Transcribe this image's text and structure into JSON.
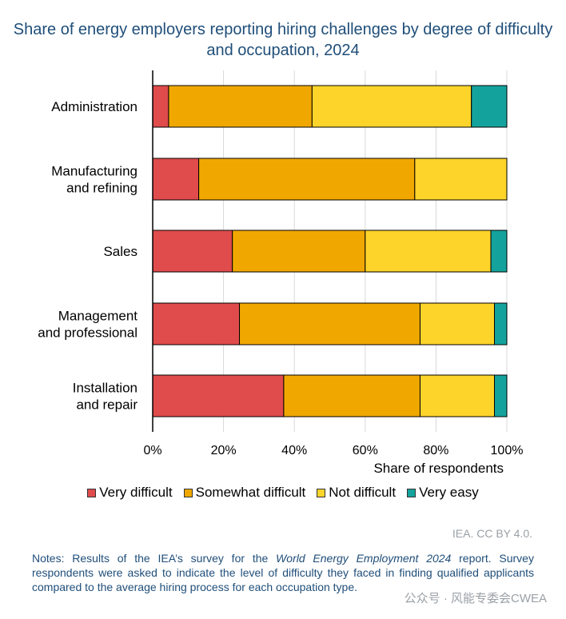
{
  "title": "Share of energy employers reporting hiring challenges by degree of difficulty and occupation, 2024",
  "source": "IEA. CC BY 4.0.",
  "notes": {
    "prefix": "Notes: Results of the IEA’s survey for the ",
    "report": "World Energy Employment 2024",
    "suffix": " report. Survey respondents were asked to indicate the level of difficulty they faced in finding qualified applicants compared to the average hiring process for each occupation type."
  },
  "watermark": "公众号 · 风能专委会CWEA",
  "chart_data": {
    "type": "bar",
    "orientation": "horizontal",
    "stacked": true,
    "categories": [
      "Administration",
      "Manufacturing\nand refining",
      "Sales",
      "Management\nand professional",
      "Installation\nand repair"
    ],
    "xlabel": "Share of respondents",
    "xlim": [
      0,
      100
    ],
    "xticks": [
      "0%",
      "20%",
      "40%",
      "60%",
      "80%",
      "100%"
    ],
    "grid": "vertical",
    "legend_position": "bottom",
    "series": [
      {
        "name": "Very difficult",
        "color": "#e04b4b",
        "values": [
          4.5,
          13,
          22.5,
          24.5,
          37
        ]
      },
      {
        "name": "Somewhat difficult",
        "color": "#f0a800",
        "values": [
          40.5,
          61,
          37.5,
          51,
          38.5
        ]
      },
      {
        "name": "Not difficult",
        "color": "#fcd42a",
        "values": [
          45,
          26,
          35.5,
          21,
          21
        ]
      },
      {
        "name": "Very easy",
        "color": "#13a39c",
        "values": [
          10,
          0,
          4.5,
          3.5,
          3.5
        ]
      }
    ]
  }
}
